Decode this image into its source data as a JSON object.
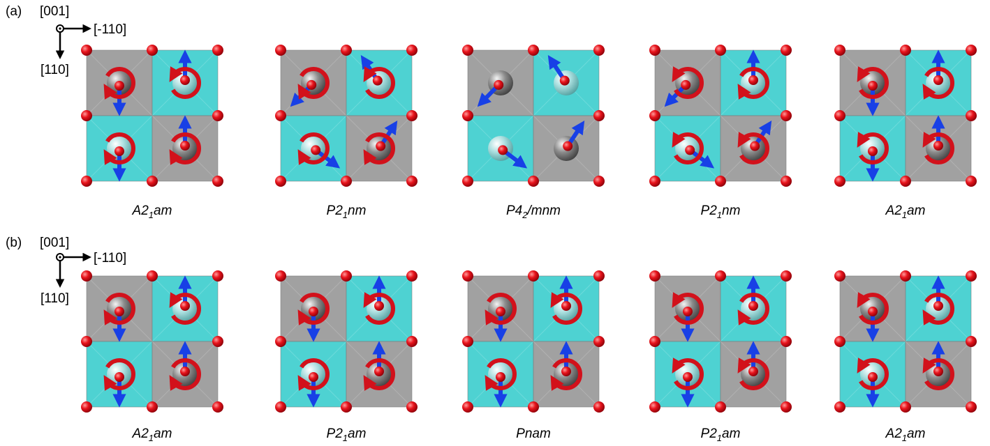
{
  "colors": {
    "octa_grey": "#9a9a9a",
    "octa_cyan": "#3fcfcf",
    "oxygen": "#e8141c",
    "arrow_blue": "#1840e6",
    "rotation_red": "#d2111b",
    "cation_grey": "#6e6e6e",
    "cation_cyan": "#8fd6d6"
  },
  "panels": [
    {
      "label": "(a)",
      "axes": {
        "out": "[001]",
        "right": "[-110]",
        "down": "[110]"
      },
      "structures": [
        {
          "name": "A2₁am",
          "cells": [
            "grey",
            "cyan",
            "cyan",
            "grey"
          ],
          "arrows": [
            "down",
            "up",
            "down",
            "up"
          ],
          "rot": [
            "cw",
            "ccw",
            "cw",
            "cw"
          ]
        },
        {
          "name": "P2₁nm",
          "cells": [
            "grey",
            "cyan",
            "cyan",
            "grey"
          ],
          "arrows": [
            "down-left",
            "up-left",
            "down-right",
            "up-right"
          ],
          "rot": [
            "cw",
            "ccw",
            "cw",
            "cw"
          ]
        },
        {
          "name": "P4₂/mnm",
          "cells": [
            "grey",
            "cyan",
            "cyan",
            "grey"
          ],
          "arrows": [
            "down-left",
            "up-left",
            "down-right",
            "up-right"
          ],
          "rot": [
            "none",
            "none",
            "none",
            "none"
          ]
        },
        {
          "name": "P2₁nm",
          "cells": [
            "grey",
            "cyan",
            "cyan",
            "grey"
          ],
          "arrows": [
            "down-left",
            "up",
            "down-right",
            "up-right"
          ],
          "rot": [
            "ccw",
            "cw",
            "ccw",
            "ccw"
          ]
        },
        {
          "name": "A2₁am",
          "cells": [
            "grey",
            "cyan",
            "cyan",
            "grey"
          ],
          "arrows": [
            "down",
            "up",
            "down",
            "up"
          ],
          "rot": [
            "ccw",
            "cw",
            "ccw",
            "ccw"
          ]
        }
      ]
    },
    {
      "label": "(b)",
      "axes": {
        "out": "[001]",
        "right": "[-110]",
        "down": "[110]"
      },
      "structures": [
        {
          "name": "A2₁am",
          "cells": [
            "grey",
            "cyan",
            "cyan",
            "grey"
          ],
          "arrows": [
            "down",
            "up",
            "down",
            "up"
          ],
          "rot": [
            "cw",
            "ccw",
            "cw",
            "cw"
          ]
        },
        {
          "name": "P2₁am",
          "cells": [
            "grey",
            "cyan",
            "cyan",
            "grey"
          ],
          "arrows": [
            "down",
            "up",
            "down",
            "up"
          ],
          "rot": [
            "cw",
            "ccw",
            "cw",
            "cw"
          ]
        },
        {
          "name": "Pnam",
          "cells": [
            "grey",
            "cyan",
            "cyan",
            "grey"
          ],
          "arrows": [
            "down",
            "up",
            "down",
            "up"
          ],
          "rot": [
            "cw",
            "ccw",
            "cw",
            "cw"
          ]
        },
        {
          "name": "P2₁am",
          "cells": [
            "grey",
            "cyan",
            "cyan",
            "grey"
          ],
          "arrows": [
            "down",
            "up",
            "down",
            "up"
          ],
          "rot": [
            "ccw",
            "cw",
            "ccw",
            "ccw"
          ]
        },
        {
          "name": "A2₁am",
          "cells": [
            "grey",
            "cyan",
            "cyan",
            "grey"
          ],
          "arrows": [
            "down",
            "up",
            "down",
            "up"
          ],
          "rot": [
            "ccw",
            "cw",
            "ccw",
            "ccw"
          ]
        }
      ]
    }
  ]
}
